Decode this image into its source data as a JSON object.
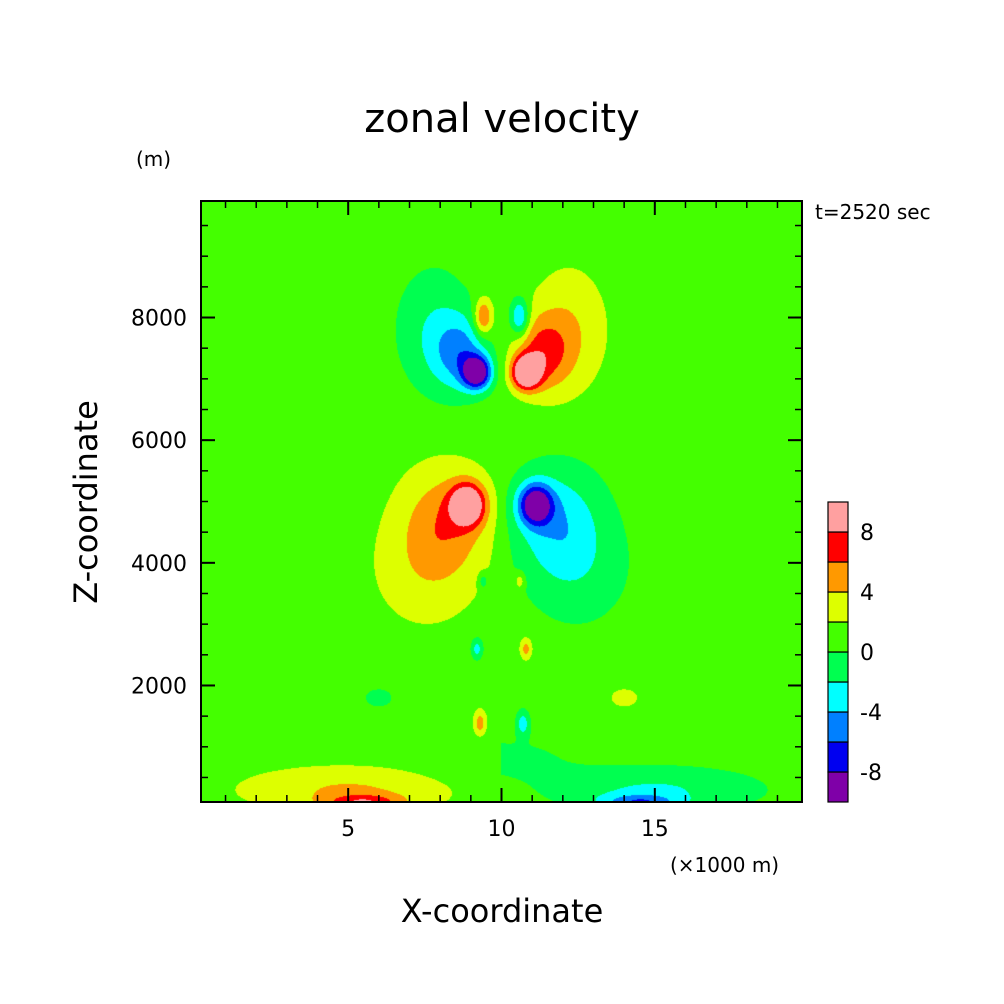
{
  "chart_data": {
    "type": "heatmap",
    "title": "zonal velocity",
    "xlabel": "X-coordinate",
    "ylabel": "Z-coordinate",
    "y_unit": "(m)",
    "x_unit": "(×1000 m)",
    "time_label": "t=2520 sec",
    "xlim": [
      0.2,
      19.8
    ],
    "ylim": [
      100,
      9900
    ],
    "x_ticks": [
      "5",
      "10",
      "15"
    ],
    "x_tick_values": [
      5,
      10,
      15
    ],
    "y_ticks": [
      "2000",
      "4000",
      "6000",
      "8000"
    ],
    "y_tick_values": [
      2000,
      4000,
      6000,
      8000
    ],
    "grid": false,
    "legend": "colorbar-right",
    "colorbar": {
      "levels": [
        -10,
        -8,
        -6,
        -4,
        -2,
        0,
        2,
        4,
        6,
        8,
        10
      ],
      "colors": [
        "#7f00a8",
        "#0000f0",
        "#0080ff",
        "#00ffff",
        "#00ff50",
        "#44ff00",
        "#ddff00",
        "#ff9900",
        "#ff0000",
        "#ffa0a0"
      ],
      "tick_labels": [
        "-8",
        "-4",
        "0",
        "4",
        "8"
      ],
      "tick_values": [
        -8,
        -4,
        0,
        4,
        8
      ]
    },
    "features": [
      {
        "x": 9.2,
        "z": 7100,
        "sx": 0.45,
        "sz": 260,
        "a": -11
      },
      {
        "x": 10.8,
        "z": 7100,
        "sx": 0.45,
        "sz": 260,
        "a": 11
      },
      {
        "x": 8.7,
        "z": 7400,
        "sx": 0.9,
        "sz": 600,
        "a": -5
      },
      {
        "x": 11.3,
        "z": 7400,
        "sx": 0.9,
        "sz": 600,
        "a": 5
      },
      {
        "x": 7.8,
        "z": 7800,
        "sx": 1.3,
        "sz": 1050,
        "a": -3
      },
      {
        "x": 12.2,
        "z": 7800,
        "sx": 1.3,
        "sz": 1050,
        "a": 3
      },
      {
        "x": 9.4,
        "z": 8000,
        "sx": 0.3,
        "sz": 300,
        "a": 6
      },
      {
        "x": 10.6,
        "z": 8000,
        "sx": 0.3,
        "sz": 300,
        "a": -6
      },
      {
        "x": 8.9,
        "z": 4950,
        "sx": 0.55,
        "sz": 330,
        "a": 10
      },
      {
        "x": 11.1,
        "z": 4950,
        "sx": 0.55,
        "sz": 330,
        "a": -10
      },
      {
        "x": 8.2,
        "z": 4700,
        "sx": 1.4,
        "sz": 850,
        "a": 4
      },
      {
        "x": 11.8,
        "z": 4700,
        "sx": 1.4,
        "sz": 850,
        "a": -4
      },
      {
        "x": 7.5,
        "z": 3900,
        "sx": 1.6,
        "sz": 900,
        "a": 2
      },
      {
        "x": 12.5,
        "z": 3900,
        "sx": 1.6,
        "sz": 900,
        "a": -2
      },
      {
        "x": 9.2,
        "z": 2600,
        "sx": 0.2,
        "sz": 180,
        "a": -4
      },
      {
        "x": 10.8,
        "z": 2600,
        "sx": 0.2,
        "sz": 180,
        "a": 4
      },
      {
        "x": 9.4,
        "z": 3700,
        "sx": 0.15,
        "sz": 130,
        "a": -3
      },
      {
        "x": 10.6,
        "z": 3700,
        "sx": 0.15,
        "sz": 130,
        "a": 3
      },
      {
        "x": 9.3,
        "z": 1380,
        "sx": 0.2,
        "sz": 200,
        "a": 4
      },
      {
        "x": 10.7,
        "z": 1380,
        "sx": 0.2,
        "sz": 200,
        "a": -4
      },
      {
        "x": 5.0,
        "z": 300,
        "sx": 3.2,
        "sz": 350,
        "a": 3
      },
      {
        "x": 15.0,
        "z": 300,
        "sx": 3.2,
        "sz": 350,
        "a": -3
      },
      {
        "x": 5.5,
        "z": 100,
        "sx": 1.2,
        "sz": 120,
        "a": 5
      },
      {
        "x": 14.5,
        "z": 100,
        "sx": 1.2,
        "sz": 120,
        "a": -5
      },
      {
        "x": 6.0,
        "z": 1800,
        "sx": 1.5,
        "sz": 500,
        "a": -1.3
      },
      {
        "x": 14.0,
        "z": 1800,
        "sx": 1.5,
        "sz": 500,
        "a": 1.3
      },
      {
        "x": 10.0,
        "z": 800,
        "sx": 2.5,
        "sz": 400,
        "a": -1.2
      }
    ],
    "background": 1.2
  }
}
